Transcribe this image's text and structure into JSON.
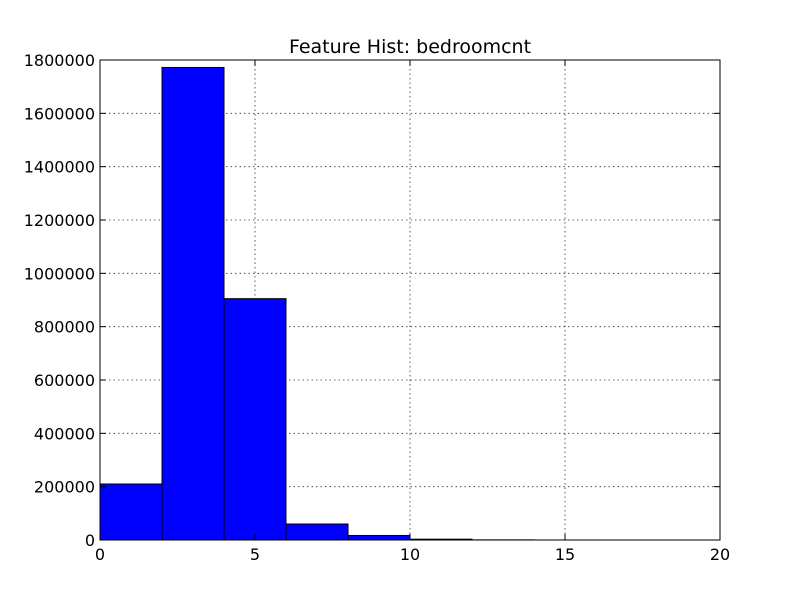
{
  "chart_data": {
    "type": "bar",
    "title": "Feature Hist: bedroomcnt",
    "xlabel": "",
    "ylabel": "",
    "xlim": [
      0,
      20
    ],
    "ylim": [
      0,
      1800000
    ],
    "x_ticks": [
      0,
      5,
      10,
      15,
      20
    ],
    "y_ticks": [
      0,
      200000,
      400000,
      600000,
      800000,
      1000000,
      1200000,
      1400000,
      1600000,
      1800000
    ],
    "grid": true,
    "bins": [
      {
        "x0": 0,
        "x1": 2,
        "value": 210000
      },
      {
        "x0": 2,
        "x1": 4,
        "value": 1772000
      },
      {
        "x0": 4,
        "x1": 6,
        "value": 905000
      },
      {
        "x0": 6,
        "x1": 8,
        "value": 60000
      },
      {
        "x0": 8,
        "x1": 10,
        "value": 17000
      },
      {
        "x0": 10,
        "x1": 12,
        "value": 3000
      },
      {
        "x0": 12,
        "x1": 14,
        "value": 500
      },
      {
        "x0": 14,
        "x1": 16,
        "value": 100
      },
      {
        "x0": 16,
        "x1": 18,
        "value": 50
      },
      {
        "x0": 18,
        "x1": 20,
        "value": 20
      }
    ],
    "bar_color": "#0000ff",
    "edge_color": "#000000"
  }
}
